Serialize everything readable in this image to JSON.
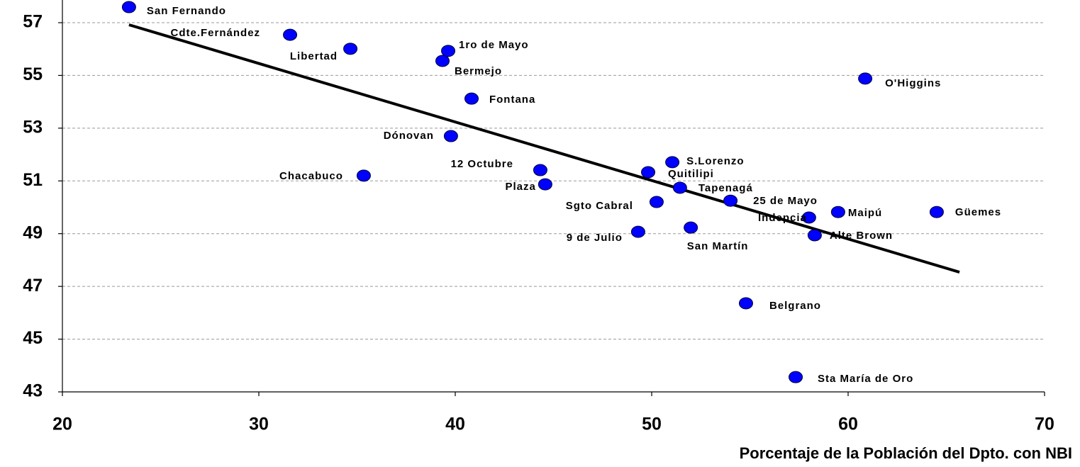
{
  "chart_data": {
    "type": "scatter",
    "x_label": "Porcentaje de la Población del Dpto. con NBI",
    "xlim": [
      20,
      70
    ],
    "xticks": [
      20,
      30,
      40,
      50,
      60,
      70
    ],
    "ylim": [
      43,
      58
    ],
    "yticks": [
      43,
      45,
      47,
      49,
      51,
      53,
      55,
      57
    ],
    "grid": true,
    "points": {
      "color": "#0000ff",
      "labels": [
        "San Fernando",
        "Cdte.Fernández",
        "Libertad",
        "1ro de Mayo",
        "Bermejo",
        "O'Higgins",
        "Fontana",
        "Dónovan",
        "S.Lorenzo",
        "Chacabuco",
        "12 Octubre",
        "Quitilipi",
        "Plaza",
        "Tapenagá",
        "25 de Mayo",
        "Sgto Cabral",
        "Maipú",
        "Güemes",
        "Indepcia",
        "San Martín",
        "9 de Julio",
        "Alte Brown",
        "Belgrano",
        "Sta María de Oro"
      ],
      "x": [
        23.39,
        31.59,
        34.66,
        39.64,
        39.35,
        60.87,
        40.83,
        39.78,
        51.05,
        35.34,
        44.33,
        49.82,
        44.58,
        51.44,
        54.01,
        50.25,
        59.49,
        64.51,
        58.01,
        51.99,
        49.31,
        58.3,
        54.8,
        57.33
      ],
      "values": [
        57.59,
        56.54,
        56.01,
        55.93,
        55.55,
        54.88,
        54.12,
        52.7,
        51.71,
        51.2,
        51.41,
        51.33,
        50.87,
        50.74,
        50.25,
        50.2,
        49.82,
        49.82,
        49.61,
        49.23,
        49.07,
        48.94,
        46.36,
        43.56
      ]
    },
    "trendline": {
      "color": "#000000",
      "x": [
        23.39,
        65.67
      ],
      "values": [
        56.92,
        47.54
      ]
    }
  }
}
